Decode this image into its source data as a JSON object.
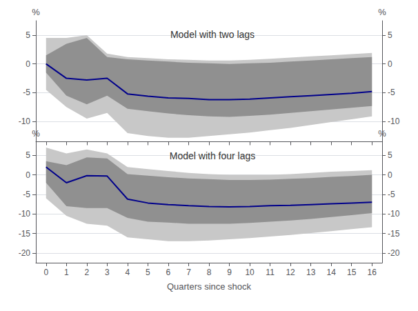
{
  "chart_data": [
    {
      "type": "line",
      "title": "Model with two lags",
      "x": [
        0,
        1,
        2,
        3,
        4,
        5,
        6,
        7,
        8,
        9,
        10,
        11,
        12,
        13,
        14,
        15,
        16
      ],
      "series": [
        {
          "type": "band",
          "color": "#c8c8c8",
          "lower": [
            -4.5,
            -7.5,
            -9.5,
            -8.5,
            -12.0,
            -12.5,
            -12.8,
            -12.8,
            -12.5,
            -12.2,
            -11.9,
            -11.5,
            -11.1,
            -10.6,
            -10.1,
            -9.6,
            -9.1
          ],
          "upper": [
            4.5,
            4.5,
            5.0,
            1.8,
            1.2,
            1.0,
            0.8,
            0.7,
            0.6,
            0.6,
            0.7,
            0.9,
            1.1,
            1.3,
            1.5,
            1.7,
            1.9
          ]
        },
        {
          "type": "band",
          "color": "#909090",
          "lower": [
            -1.5,
            -5.5,
            -7.0,
            -5.5,
            -7.8,
            -8.2,
            -8.6,
            -8.9,
            -9.1,
            -9.2,
            -9.0,
            -8.8,
            -8.5,
            -8.2,
            -7.9,
            -7.6,
            -7.3
          ],
          "upper": [
            1.5,
            3.5,
            4.5,
            1.2,
            0.8,
            0.6,
            0.4,
            0.2,
            0.1,
            0.0,
            0.1,
            0.2,
            0.4,
            0.6,
            0.8,
            1.0,
            1.2
          ]
        },
        {
          "type": "line",
          "color": "#00008b",
          "values": [
            0.0,
            -2.5,
            -2.8,
            -2.5,
            -5.2,
            -5.6,
            -5.9,
            -6.0,
            -6.2,
            -6.2,
            -6.1,
            -5.9,
            -5.7,
            -5.5,
            -5.3,
            -5.1,
            -4.8
          ]
        }
      ],
      "xlim": [
        -0.5,
        16.5
      ],
      "xticks": [
        0,
        1,
        2,
        3,
        4,
        5,
        6,
        7,
        8,
        9,
        10,
        11,
        12,
        13,
        14,
        15,
        16
      ],
      "ylabel": "%",
      "ylim": [
        -13.5,
        7.5
      ],
      "yticks": [
        -10,
        -5,
        0,
        5
      ],
      "y2label": "%",
      "y2lim": [
        -13.5,
        7.5
      ],
      "y2ticks": [
        -10,
        -5,
        0,
        5
      ],
      "grid": true,
      "tick_labels": "y"
    },
    {
      "type": "line",
      "title": "Model with four lags",
      "x": [
        0,
        1,
        2,
        3,
        4,
        5,
        6,
        7,
        8,
        9,
        10,
        11,
        12,
        13,
        14,
        15,
        16
      ],
      "series": [
        {
          "type": "band",
          "color": "#c8c8c8",
          "lower": [
            -6.0,
            -10.5,
            -12.5,
            -13.0,
            -16.0,
            -16.5,
            -17.0,
            -17.0,
            -16.8,
            -16.5,
            -16.2,
            -15.8,
            -15.4,
            -14.9,
            -14.4,
            -13.9,
            -13.4
          ],
          "upper": [
            7.0,
            5.5,
            6.5,
            5.5,
            2.0,
            1.5,
            1.0,
            0.5,
            0.2,
            0.0,
            0.0,
            0.0,
            0.2,
            0.5,
            0.8,
            1.0,
            1.2
          ]
        },
        {
          "type": "band",
          "color": "#909090",
          "lower": [
            -2.0,
            -8.0,
            -8.5,
            -8.5,
            -11.0,
            -12.0,
            -12.2,
            -12.5,
            -12.5,
            -12.5,
            -12.3,
            -12.0,
            -11.7,
            -11.3,
            -10.8,
            -10.3,
            -9.8
          ],
          "upper": [
            3.5,
            2.5,
            4.5,
            4.2,
            0.2,
            -0.2,
            -0.6,
            -0.9,
            -1.1,
            -1.3,
            -1.3,
            -1.2,
            -1.0,
            -0.8,
            -0.5,
            -0.3,
            0.0
          ]
        },
        {
          "type": "line",
          "color": "#00008b",
          "values": [
            2.0,
            -2.0,
            -0.2,
            -0.3,
            -6.2,
            -7.2,
            -7.6,
            -7.9,
            -8.1,
            -8.2,
            -8.1,
            -7.9,
            -7.8,
            -7.6,
            -7.4,
            -7.2,
            -7.0
          ]
        }
      ],
      "xlabel": "Quarters since shock",
      "xlim": [
        -0.5,
        16.5
      ],
      "xticks": [
        0,
        1,
        2,
        3,
        4,
        5,
        6,
        7,
        8,
        9,
        10,
        11,
        12,
        13,
        14,
        15,
        16
      ],
      "ylabel": "%",
      "ylim": [
        -22.5,
        8.5
      ],
      "yticks": [
        -20,
        -15,
        -10,
        -5,
        0,
        5
      ],
      "y2label": "%",
      "y2lim": [
        -22.5,
        8.5
      ],
      "y2ticks": [
        -20,
        -15,
        -10,
        -5,
        0,
        5
      ],
      "grid": true
    }
  ]
}
